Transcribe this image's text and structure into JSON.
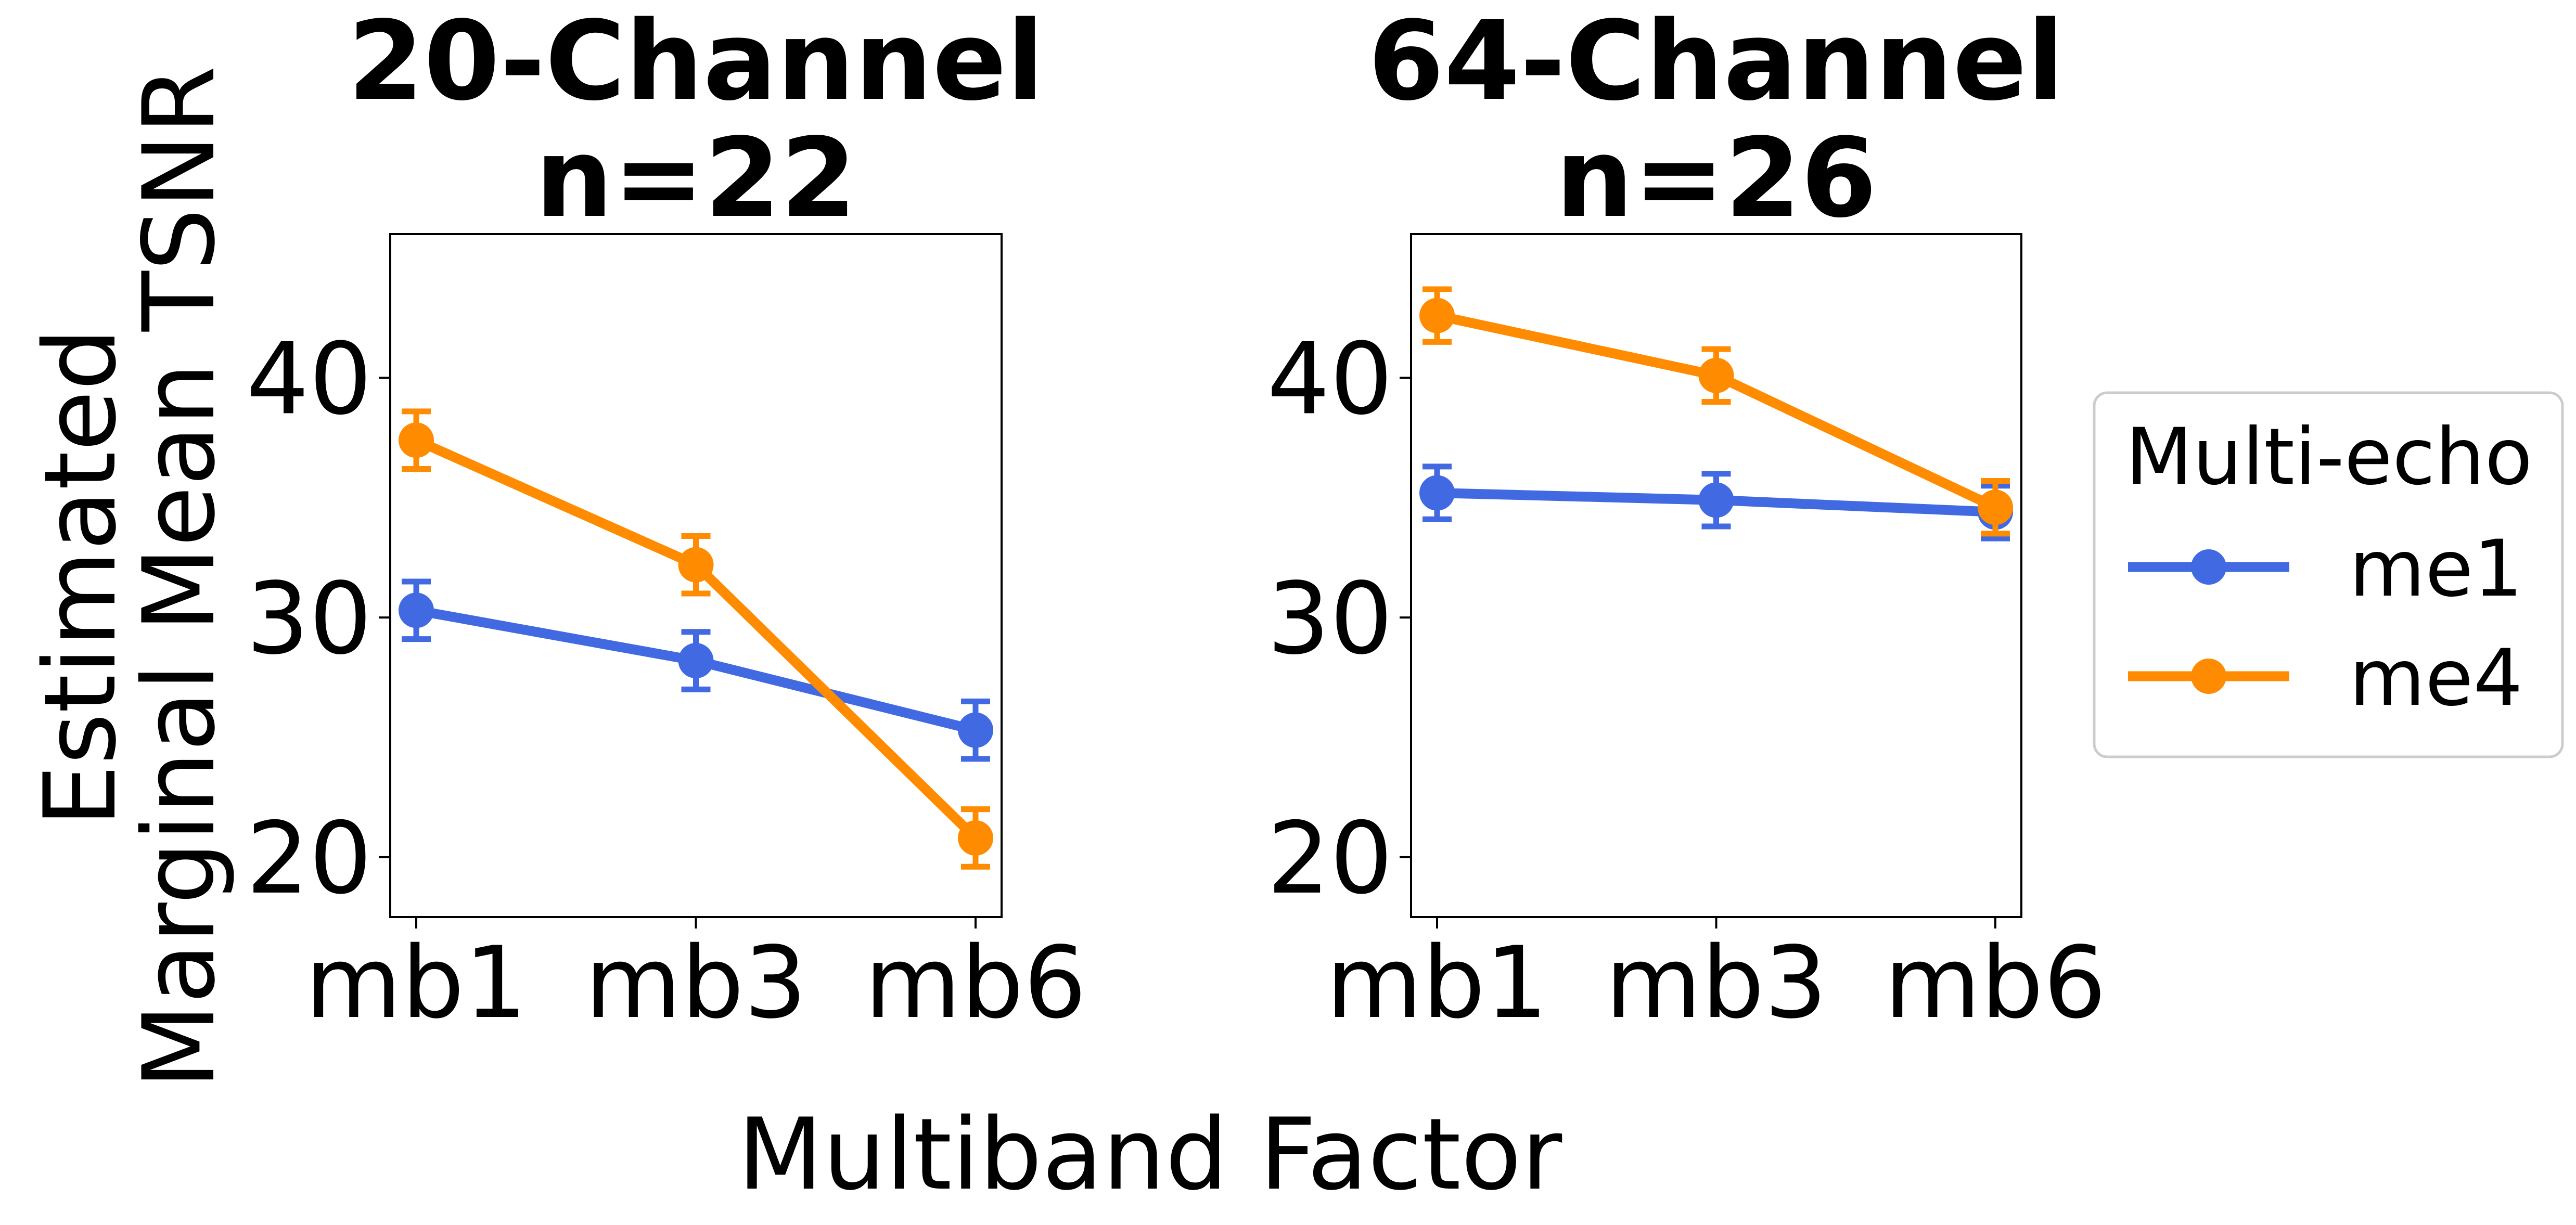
{
  "figure": {
    "ylabel_line1": "Estimated",
    "ylabel_line2": "Marginal Mean TSNR",
    "xlabel": "Multiband Factor"
  },
  "legend": {
    "title": "Multi-echo",
    "entries": [
      "me1",
      "me4"
    ],
    "placement": "right"
  },
  "colors": {
    "me1": "#4169e1",
    "me4": "#ff8c00"
  },
  "chart_data": [
    {
      "type": "line",
      "title_line1": "20-Channel",
      "title_line2": "n=22",
      "categories": [
        "mb1",
        "mb3",
        "mb6"
      ],
      "ylim": [
        17.5,
        46
      ],
      "yticks": [
        20,
        30,
        40
      ],
      "grid": false,
      "series": [
        {
          "name": "me1",
          "values": [
            30.3,
            28.2,
            25.3
          ],
          "err": [
            1.2,
            1.2,
            1.2
          ]
        },
        {
          "name": "me4",
          "values": [
            37.4,
            32.2,
            20.8
          ],
          "err": [
            1.2,
            1.2,
            1.2
          ]
        }
      ]
    },
    {
      "type": "line",
      "title_line1": "64-Channel",
      "title_line2": "n=26",
      "categories": [
        "mb1",
        "mb3",
        "mb6"
      ],
      "ylim": [
        17.5,
        46
      ],
      "yticks": [
        20,
        30,
        40
      ],
      "grid": false,
      "series": [
        {
          "name": "me1",
          "values": [
            35.2,
            34.9,
            34.4
          ],
          "err": [
            1.1,
            1.1,
            1.1
          ]
        },
        {
          "name": "me4",
          "values": [
            42.6,
            40.1,
            34.6
          ],
          "err": [
            1.1,
            1.1,
            1.1
          ]
        }
      ]
    }
  ]
}
